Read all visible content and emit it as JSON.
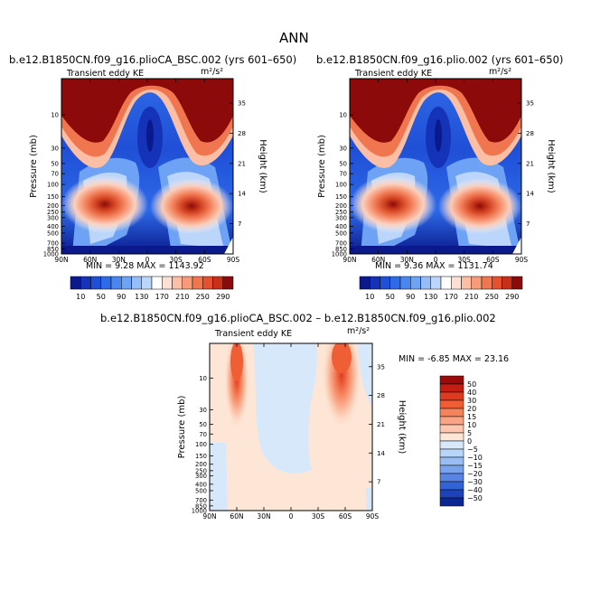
{
  "page": {
    "title": "ANN"
  },
  "panels": [
    {
      "case_title": "b.e12.B1850CN.f09_g16.plioCA_BSC.002 (yrs 601–650)",
      "var_label": "Transient eddy KE",
      "units": "m²/s²",
      "stats_text": "MIN =    9.28   MAX = 1143.92",
      "left_axis_title": "Pressure (mb)",
      "right_axis_title": "Height (km)"
    },
    {
      "case_title": "b.e12.B1850CN.f09_g16.plio.002 (yrs 601–650)",
      "var_label": "Transient eddy KE",
      "units": "m²/s²",
      "stats_text": "MIN =    9.36   MAX = 1131.74",
      "left_axis_title": "Pressure (mb)",
      "right_axis_title": "Height (km)"
    }
  ],
  "diff_panel": {
    "title": "b.e12.B1850CN.f09_g16.plioCA_BSC.002 – b.e12.B1850CN.f09_g16.plio.002",
    "var_label": "Transient eddy KE",
    "units": "m²/s²",
    "stats_text": "MIN =   -6.85   MAX =   23.16",
    "left_axis_title": "Pressure (mb)",
    "right_axis_title": "Height (km)"
  },
  "chart_data": [
    {
      "type": "heatmap",
      "name": "Transient eddy KE (plioCA_BSC.002)",
      "x_ticks": [
        "90N",
        "60N",
        "30N",
        "0",
        "30S",
        "60S",
        "90S"
      ],
      "y_ticks_pressure": [
        "10",
        "30",
        "50",
        "70",
        "100",
        "150",
        "200",
        "250",
        "300",
        "400",
        "500",
        "700",
        "850",
        "1000"
      ],
      "y_ticks_height": [
        "35",
        "28",
        "21",
        "14",
        "7"
      ],
      "xlim": [
        "90N",
        "90S"
      ],
      "ylim_pressure_mb": [
        1000,
        3
      ],
      "y_scale": "log",
      "min": 9.28,
      "max": 1143.92,
      "colorbar_levels": [
        10,
        30,
        50,
        70,
        90,
        110,
        130,
        150,
        170,
        190,
        210,
        230,
        250,
        270,
        290
      ],
      "colorbar_labels": [
        "10",
        "50",
        "90",
        "130",
        "170",
        "210",
        "250",
        "290"
      ]
    },
    {
      "type": "heatmap",
      "name": "Transient eddy KE (plio.002)",
      "x_ticks": [
        "90N",
        "60N",
        "30N",
        "0",
        "30S",
        "60S",
        "90S"
      ],
      "y_ticks_pressure": [
        "10",
        "30",
        "50",
        "70",
        "100",
        "150",
        "200",
        "250",
        "300",
        "400",
        "500",
        "700",
        "850",
        "1000"
      ],
      "y_ticks_height": [
        "35",
        "28",
        "21",
        "14",
        "7"
      ],
      "xlim": [
        "90N",
        "90S"
      ],
      "ylim_pressure_mb": [
        1000,
        3
      ],
      "y_scale": "log",
      "min": 9.36,
      "max": 1131.74,
      "colorbar_levels": [
        10,
        30,
        50,
        70,
        90,
        110,
        130,
        150,
        170,
        190,
        210,
        230,
        250,
        270,
        290
      ],
      "colorbar_labels": [
        "10",
        "50",
        "90",
        "130",
        "170",
        "210",
        "250",
        "290"
      ]
    },
    {
      "type": "heatmap",
      "name": "Difference",
      "x_ticks": [
        "90N",
        "60N",
        "30N",
        "0",
        "30S",
        "60S",
        "90S"
      ],
      "y_ticks_pressure": [
        "10",
        "30",
        "50",
        "70",
        "100",
        "150",
        "200",
        "250",
        "300",
        "400",
        "500",
        "700",
        "850",
        "1000"
      ],
      "y_ticks_height": [
        "35",
        "28",
        "21",
        "14",
        "7"
      ],
      "xlim": [
        "90N",
        "90S"
      ],
      "ylim_pressure_mb": [
        1000,
        3
      ],
      "y_scale": "log",
      "min": -6.85,
      "max": 23.16,
      "colorbar_labels": [
        "50",
        "40",
        "30",
        "20",
        "15",
        "10",
        "5",
        "0",
        "−5",
        "−10",
        "−15",
        "−20",
        "−30",
        "−40",
        "−50"
      ]
    }
  ],
  "colors": {
    "abs_palette": [
      "#0a1a8c",
      "#1533b8",
      "#1f4fd6",
      "#2e6ae8",
      "#4a86f0",
      "#6ea2f5",
      "#95bdf8",
      "#bcd6fb",
      "#ffffff",
      "#fde0d3",
      "#fbbfa5",
      "#f79b78",
      "#f07650",
      "#e5502e",
      "#c8301a",
      "#8c0a0a"
    ],
    "diff_palette": [
      "#9b0a0a",
      "#c41d12",
      "#df3b20",
      "#ef5e35",
      "#f5825b",
      "#f9a585",
      "#fcc7ae",
      "#fde6d6",
      "#d8e8fb",
      "#b8d4f8",
      "#97bdf4",
      "#7aa3ee",
      "#5884e4",
      "#3463d6",
      "#1d42bb",
      "#0d2695"
    ]
  }
}
